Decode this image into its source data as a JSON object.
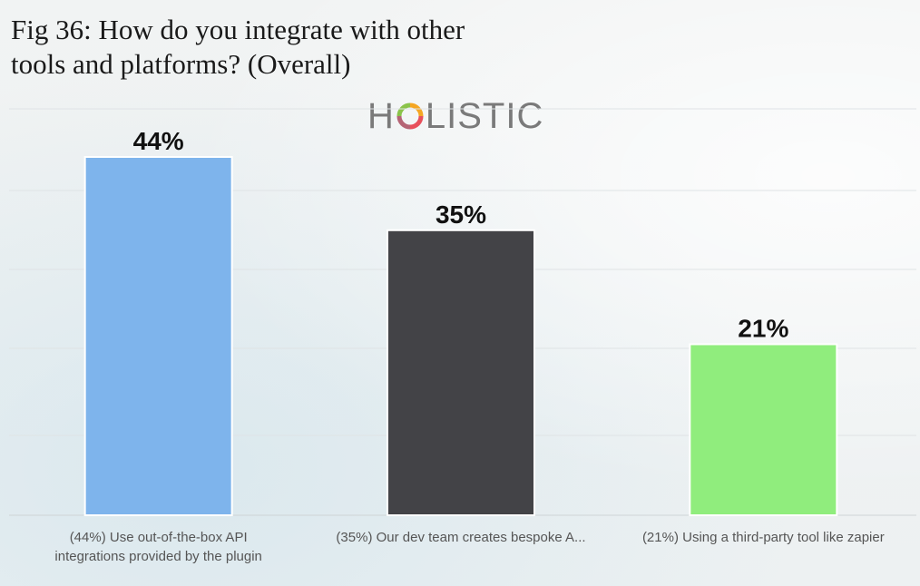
{
  "header": {
    "title_line1": "Fig 36: How do you integrate with other",
    "title_line2": "tools and platforms? (Overall)"
  },
  "logo": {
    "text_before_o": "H",
    "text_after_o": "LISTIC",
    "icon": "holistic-ring-logo-icon",
    "color": "#7a7a7a"
  },
  "chart_data": {
    "type": "bar",
    "title": "Fig 36: How do you integrate with other tools and platforms? (Overall)",
    "categories": [
      [
        "(44%) Use out-of-the-box API",
        "integrations provided by the plugin"
      ],
      [
        "(35%) Our dev team creates bespoke A..."
      ],
      [
        "(21%) Using a third-party tool like zapier"
      ]
    ],
    "values": [
      44,
      35,
      21
    ],
    "value_labels": [
      "44%",
      "35%",
      "21%"
    ],
    "colors": [
      "#7eb4ec",
      "#434347",
      "#90ed7d"
    ],
    "ylim": [
      0,
      50
    ],
    "grid": true,
    "legend": "none"
  }
}
